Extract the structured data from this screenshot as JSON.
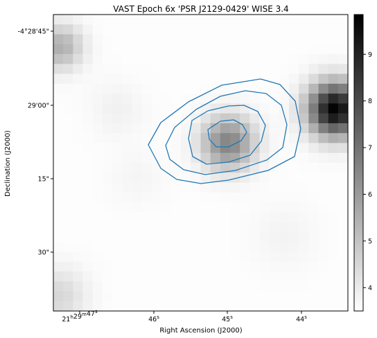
{
  "figure": {
    "title": "VAST Epoch 6x 'PSR J2129-0429' WISE 3.4",
    "xlabel": "Right Ascension (J2000)",
    "ylabel": "Declination (J2000)"
  },
  "x_ticks": [
    {
      "main": "21",
      "h": "h",
      "m_val": "29",
      "m": "m",
      "s_val": "47",
      "s": "s"
    },
    {
      "main": "46",
      "s": "s"
    },
    {
      "main": "45",
      "s": "s"
    },
    {
      "main": "44",
      "s": "s"
    }
  ],
  "y_ticks": [
    "-4°28'45\"",
    "29'00\"",
    "15\"",
    "30\""
  ],
  "colorbar": {
    "ticks": [
      "4",
      "5",
      "6",
      "7",
      "8",
      "9"
    ],
    "range": [
      3.5,
      9.85
    ],
    "colormap": "grey (white = low, black = high)"
  },
  "image": {
    "grid": [
      30,
      30
    ],
    "background_level": 3.55,
    "sources": [
      {
        "col": 28.2,
        "row": 9.1,
        "peak": 9.8,
        "sigma": 1.9
      },
      {
        "col": 17.3,
        "row": 12.5,
        "peak": 6.6,
        "sigma": 1.9
      },
      {
        "col": 0.2,
        "row": 2.8,
        "peak": 5.5,
        "sigma": 1.6
      },
      {
        "col": 0.0,
        "row": 28.0,
        "peak": 4.5,
        "sigma": 2.0
      },
      {
        "col": 6.0,
        "row": 9.0,
        "peak": 3.85,
        "sigma": 2.0
      },
      {
        "col": 8.0,
        "row": 16.0,
        "peak": 3.75,
        "sigma": 2.0
      },
      {
        "col": 23.0,
        "row": 22.0,
        "peak": 3.8,
        "sigma": 2.3
      }
    ]
  },
  "contour_color": "#1f77b4"
}
